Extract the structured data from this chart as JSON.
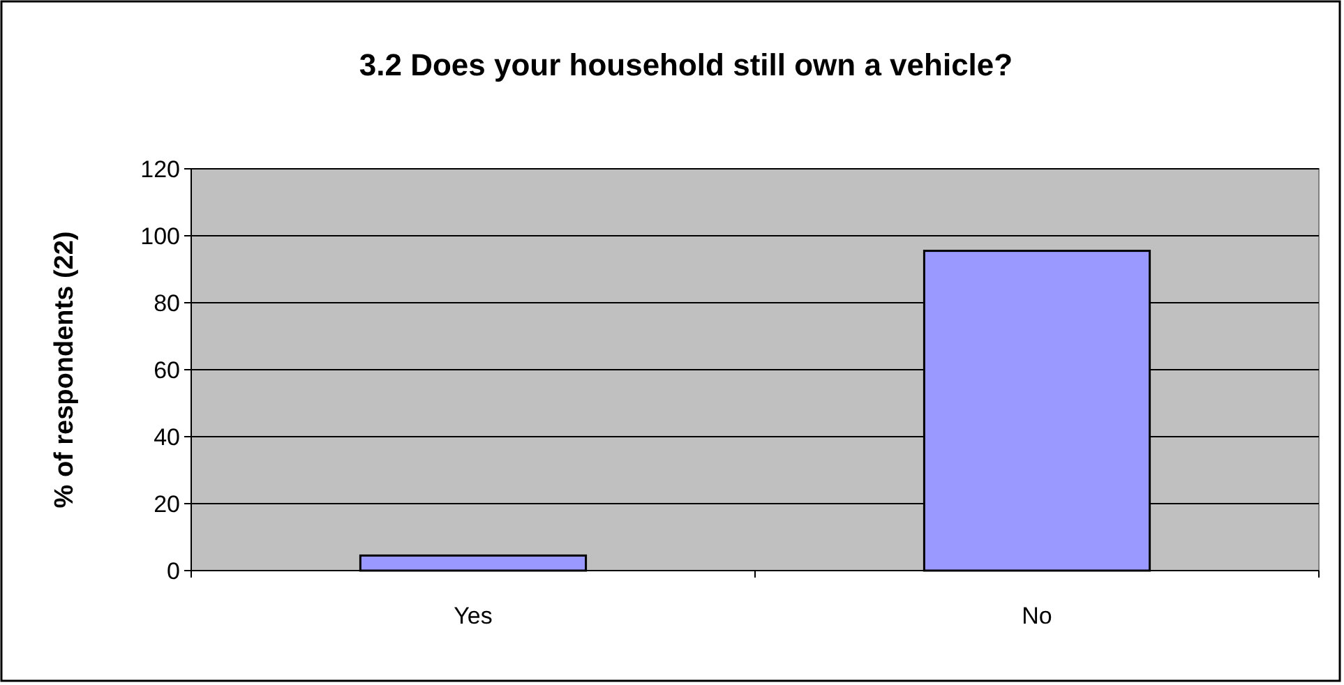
{
  "chart_data": {
    "type": "bar",
    "title": "3.2 Does your household still own a vehicle?",
    "ylabel": "% of respondents (22)",
    "categories": [
      "Yes",
      "No"
    ],
    "values": [
      4.5,
      95.5
    ],
    "color": "#9999ff",
    "ylim": [
      0,
      120
    ],
    "yticks": [
      0,
      20,
      40,
      60,
      80,
      100,
      120
    ],
    "grid": "y"
  }
}
